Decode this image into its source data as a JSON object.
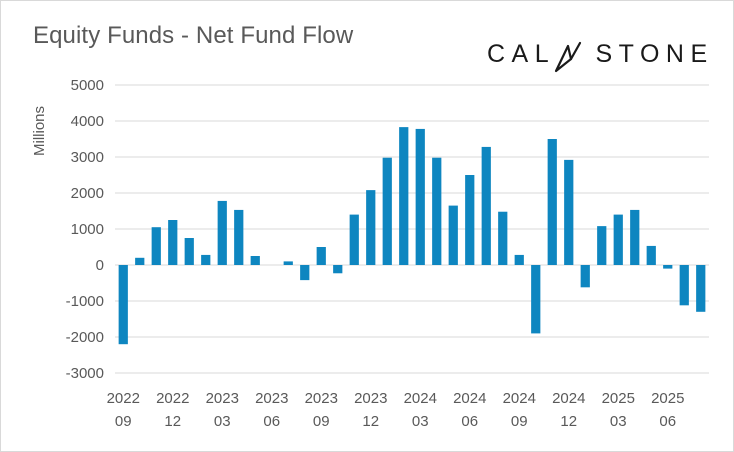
{
  "chart_data": {
    "type": "bar",
    "title": "Equity Funds - Net Fund Flow",
    "logo_text": "CALSTONE",
    "ylabel": "Millions",
    "xlabel": "",
    "ylim": [
      -3000,
      5000
    ],
    "yticks": [
      5000,
      4000,
      3000,
      2000,
      1000,
      0,
      -1000,
      -2000,
      -3000
    ],
    "grid": true,
    "bar_color": "#0e86c0",
    "categories": [
      "2022-09",
      "2022-10",
      "2022-11",
      "2022-12",
      "2023-01",
      "2023-02",
      "2023-03",
      "2023-04",
      "2023-05",
      "2023-06",
      "2023-07",
      "2023-08",
      "2023-09",
      "2023-10",
      "2023-11",
      "2023-12",
      "2024-01",
      "2024-02",
      "2024-03",
      "2024-04",
      "2024-05",
      "2024-06",
      "2024-07",
      "2024-08",
      "2024-09",
      "2024-10",
      "2024-11",
      "2024-12",
      "2025-01",
      "2025-02",
      "2025-03",
      "2025-04",
      "2025-05",
      "2025-06",
      "2025-07",
      "2025-08"
    ],
    "values": [
      -2200,
      200,
      1050,
      1250,
      750,
      280,
      1780,
      1530,
      250,
      0,
      100,
      -420,
      500,
      -230,
      1400,
      2080,
      2980,
      3830,
      3780,
      2980,
      1650,
      2500,
      3280,
      1480,
      280,
      -1900,
      3500,
      2920,
      -620,
      1080,
      1400,
      1530,
      530,
      -100,
      -1120,
      -1300
    ],
    "tick_labels": [
      {
        "index": 0,
        "year": "2022",
        "month": "09"
      },
      {
        "index": 3,
        "year": "2022",
        "month": "12"
      },
      {
        "index": 6,
        "year": "2023",
        "month": "03"
      },
      {
        "index": 9,
        "year": "2023",
        "month": "06"
      },
      {
        "index": 12,
        "year": "2023",
        "month": "09"
      },
      {
        "index": 15,
        "year": "2023",
        "month": "12"
      },
      {
        "index": 18,
        "year": "2024",
        "month": "03"
      },
      {
        "index": 21,
        "year": "2024",
        "month": "06"
      },
      {
        "index": 24,
        "year": "2024",
        "month": "09"
      },
      {
        "index": 27,
        "year": "2024",
        "month": "12"
      },
      {
        "index": 30,
        "year": "2025",
        "month": "03"
      },
      {
        "index": 33,
        "year": "2025",
        "month": "06"
      }
    ]
  }
}
